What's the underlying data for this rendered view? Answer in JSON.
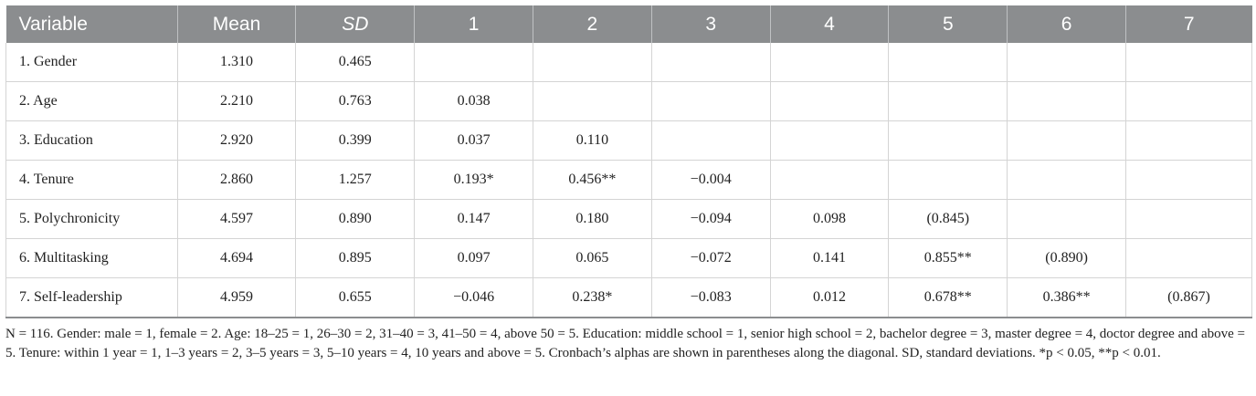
{
  "table": {
    "headers": [
      "Variable",
      "Mean",
      "SD",
      "1",
      "2",
      "3",
      "4",
      "5",
      "6",
      "7"
    ],
    "rows": [
      [
        "1. Gender",
        "1.310",
        "0.465",
        "",
        "",
        "",
        "",
        "",
        "",
        ""
      ],
      [
        "2. Age",
        "2.210",
        "0.763",
        "0.038",
        "",
        "",
        "",
        "",
        "",
        ""
      ],
      [
        "3. Education",
        "2.920",
        "0.399",
        "0.037",
        "0.110",
        "",
        "",
        "",
        "",
        ""
      ],
      [
        "4. Tenure",
        "2.860",
        "1.257",
        "0.193*",
        "0.456**",
        "−0.004",
        "",
        "",
        "",
        ""
      ],
      [
        "5. Polychronicity",
        "4.597",
        "0.890",
        "0.147",
        "0.180",
        "−0.094",
        "0.098",
        "(0.845)",
        "",
        ""
      ],
      [
        "6. Multitasking",
        "4.694",
        "0.895",
        "0.097",
        "0.065",
        "−0.072",
        "0.141",
        "0.855**",
        "(0.890)",
        ""
      ],
      [
        "7. Self-leadership",
        "4.959",
        "0.655",
        "−0.046",
        "0.238*",
        "−0.083",
        "0.012",
        "0.678**",
        "0.386**",
        "(0.867)"
      ]
    ]
  },
  "note": "N = 116. Gender: male = 1, female = 2. Age: 18–25 = 1, 26–30 = 2, 31–40 = 3, 41–50 = 4, above 50 = 5. Education: middle school = 1, senior high school = 2, bachelor degree = 3, master degree = 4, doctor degree and above = 5. Tenure: within 1 year = 1, 1–3 years = 2, 3–5 years = 3, 5–10 years = 4, 10 years and above = 5. Cronbach’s alphas are shown in parentheses along the diagonal. SD, standard deviations. *p < 0.05, **p < 0.01."
}
